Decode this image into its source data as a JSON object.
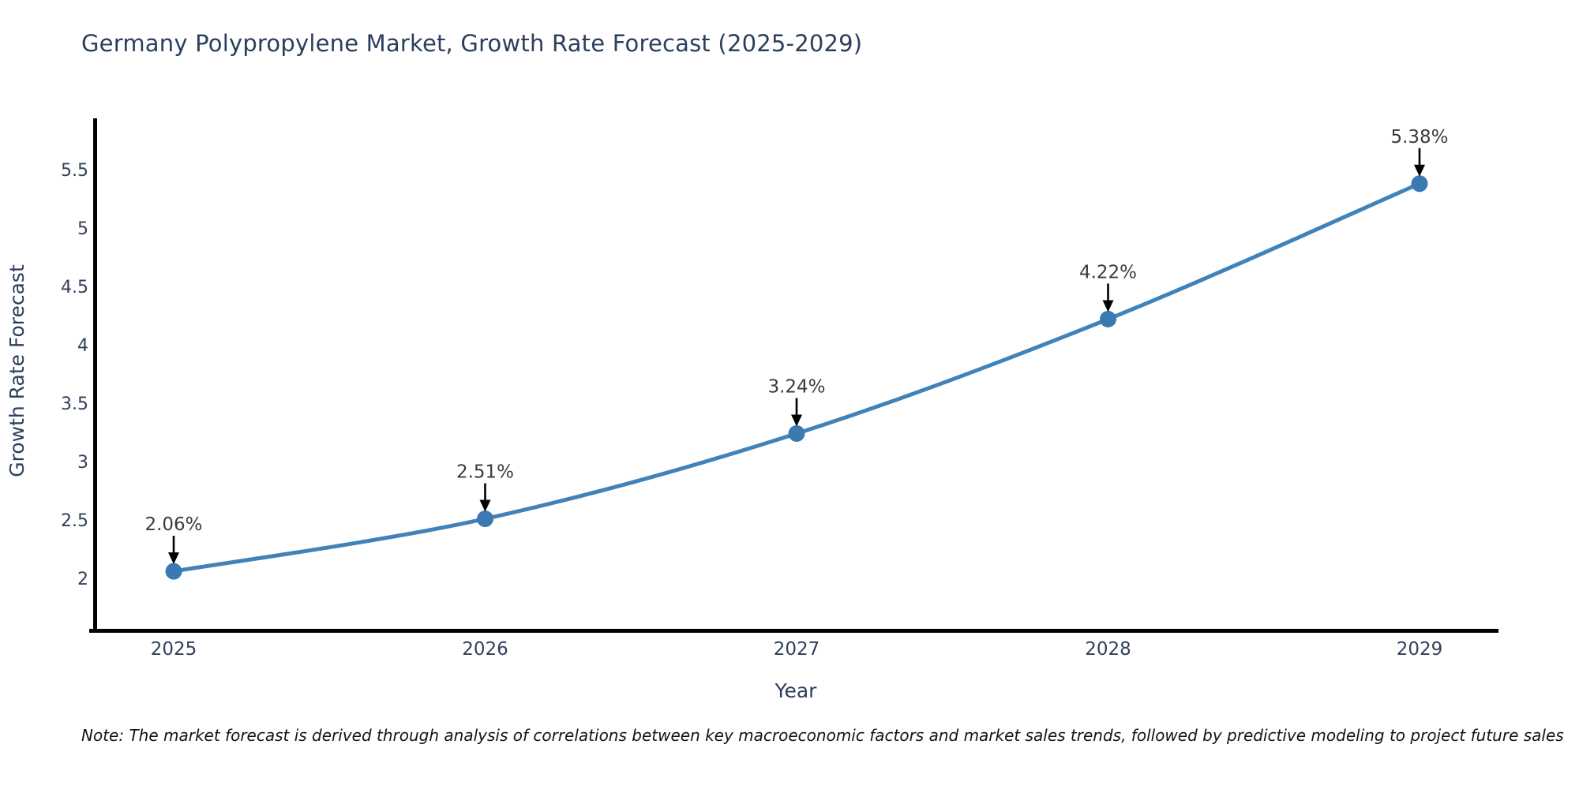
{
  "title": "Germany Polypropylene Market, Growth Rate Forecast (2025-2029)",
  "note": "Note: The market forecast is derived through analysis of correlations between key macroeconomic factors and market sales trends, followed by predictive modeling to project future sales",
  "chart_data": {
    "type": "line",
    "title": "Germany Polypropylene Market, Growth Rate Forecast (2025-2029)",
    "x": [
      "2025",
      "2026",
      "2027",
      "2028",
      "2029"
    ],
    "y": [
      2.06,
      2.51,
      3.24,
      4.22,
      5.38
    ],
    "point_labels": [
      "2.06%",
      "2.51%",
      "3.24%",
      "4.22%",
      "5.38%"
    ],
    "xlabel": "Year",
    "ylabel": "Growth Rate Forecast",
    "y_ticks": [
      2,
      2.5,
      3,
      3.5,
      4,
      4.5,
      5,
      5.5
    ],
    "ylim": [
      1.55,
      5.95
    ],
    "grid": false,
    "legend": false,
    "smooth_curve": true,
    "annotations_have_arrows": true,
    "colors": {
      "line": "#4182b8",
      "marker": "#3a79b2",
      "spine": "#000000",
      "axis_text": "#33405c",
      "axis_title_text": "#2b3f5c",
      "point_label_text": "#3b3b3b",
      "arrow": "#000000"
    }
  }
}
